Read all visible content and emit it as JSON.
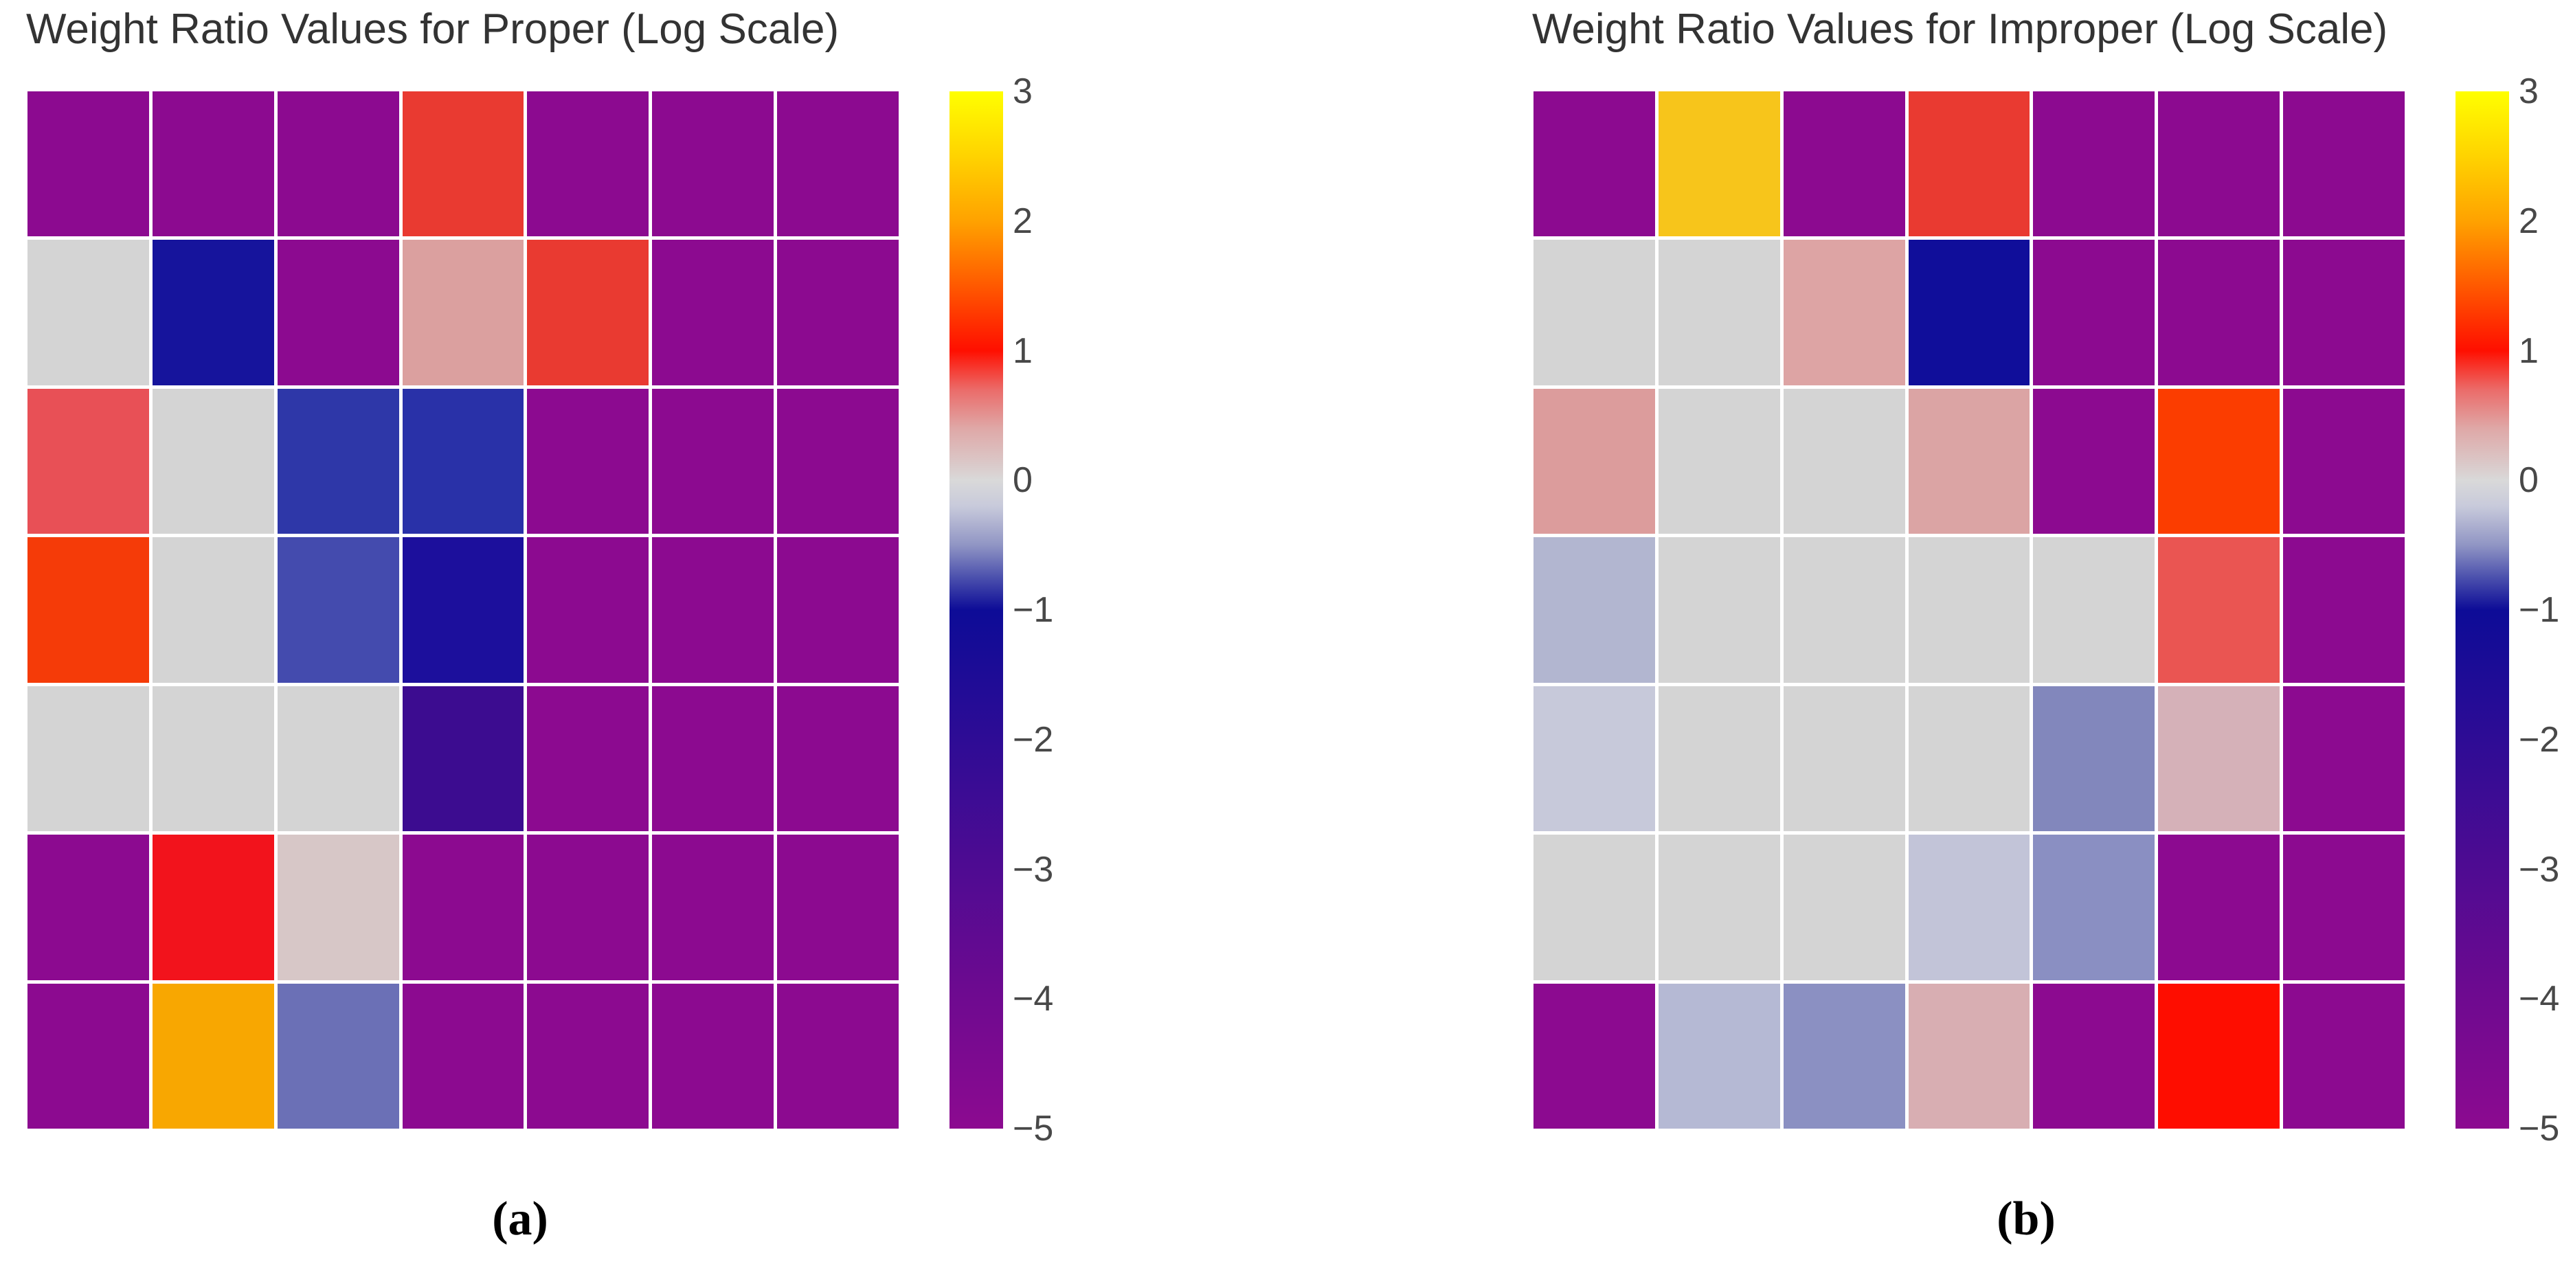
{
  "figure": {
    "background": "#ffffff",
    "colorbar": {
      "min": -5,
      "max": 3,
      "orientation": "vertical",
      "position": "right",
      "ticks": [
        {
          "value": 3,
          "label": "3"
        },
        {
          "value": 2,
          "label": "2"
        },
        {
          "value": 1,
          "label": "1"
        },
        {
          "value": 0,
          "label": "0"
        },
        {
          "value": -1,
          "label": "−1"
        },
        {
          "value": -2,
          "label": "−2"
        },
        {
          "value": -3,
          "label": "−3"
        },
        {
          "value": -4,
          "label": "−4"
        },
        {
          "value": -5,
          "label": "−5"
        }
      ],
      "gradient_stops": [
        {
          "value": 3,
          "color": "#ffff00"
        },
        {
          "value": 2.5,
          "color": "#ffd300"
        },
        {
          "value": 2,
          "color": "#ffa200"
        },
        {
          "value": 1.5,
          "color": "#ff5900"
        },
        {
          "value": 1,
          "color": "#ff0f00"
        },
        {
          "value": 0.7,
          "color": "#eb6b69"
        },
        {
          "value": 0.4,
          "color": "#dfa8a7"
        },
        {
          "value": 0.1,
          "color": "#dacccc"
        },
        {
          "value": 0,
          "color": "#d9d9d9"
        },
        {
          "value": -0.2,
          "color": "#c8cadb"
        },
        {
          "value": -0.5,
          "color": "#9095c4"
        },
        {
          "value": -0.75,
          "color": "#4b50ad"
        },
        {
          "value": -1,
          "color": "#0d0c97"
        },
        {
          "value": -2,
          "color": "#2e0c95"
        },
        {
          "value": -3,
          "color": "#4f0b92"
        },
        {
          "value": -4,
          "color": "#6f0a90"
        },
        {
          "value": -5,
          "color": "#8c0a90"
        }
      ]
    },
    "panels": [
      {
        "key": "a",
        "title": "Weight Ratio Values for Proper (Log Scale)",
        "caption": "(a)",
        "chart_data": {
          "type": "heatmap",
          "title": "Weight Ratio Values for Proper (Log Scale)",
          "rows": 7,
          "cols": 7,
          "value_range": [
            -5,
            3
          ],
          "legend_position": "right",
          "values": [
            [
              -5,
              -5,
              -5,
              0.9,
              -5,
              -5,
              -5
            ],
            [
              0,
              -1.1,
              -5,
              0.45,
              0.9,
              -5,
              -5
            ],
            [
              0.8,
              0,
              -0.85,
              -0.9,
              -5,
              -5,
              -5
            ],
            [
              1.2,
              0,
              -0.75,
              -1.2,
              -5,
              -5,
              -5
            ],
            [
              0,
              0,
              0,
              -2.7,
              -5,
              -5,
              -5
            ],
            [
              -5,
              1.0,
              0.2,
              -5,
              -5,
              -5,
              -5
            ],
            [
              -5,
              2.0,
              -0.6,
              -5,
              -5,
              -5,
              -5
            ]
          ],
          "cell_colors": [
            [
              "#8c0a90",
              "#8c0a90",
              "#8c0a90",
              "#e93a31",
              "#8c0a90",
              "#8c0a90",
              "#8c0a90"
            ],
            [
              "#d4d4d4",
              "#16149c",
              "#8c0a90",
              "#dba09f",
              "#e93a31",
              "#8c0a90",
              "#8c0a90"
            ],
            [
              "#e85056",
              "#d4d4d4",
              "#2e37a8",
              "#2931a8",
              "#8c0a90",
              "#8c0a90",
              "#8c0a90"
            ],
            [
              "#f53b08",
              "#d4d4d4",
              "#444bae",
              "#1c0f9c",
              "#8c0a90",
              "#8c0a90",
              "#8c0a90"
            ],
            [
              "#d4d4d4",
              "#d4d4d4",
              "#d4d4d4",
              "#3c0c90",
              "#8c0a90",
              "#8c0a90",
              "#8c0a90"
            ],
            [
              "#8c0a90",
              "#f2131c",
              "#d7c7c7",
              "#8c0a90",
              "#8c0a90",
              "#8c0a90",
              "#8c0a90"
            ],
            [
              "#8c0a90",
              "#f8a701",
              "#6b70b6",
              "#8c0a90",
              "#8c0a90",
              "#8c0a90",
              "#8c0a90"
            ]
          ]
        }
      },
      {
        "key": "b",
        "title": "Weight Ratio Values for Improper (Log Scale)",
        "caption": "(b)",
        "chart_data": {
          "type": "heatmap",
          "title": "Weight Ratio Values for Improper (Log Scale)",
          "rows": 7,
          "cols": 7,
          "value_range": [
            -5,
            3
          ],
          "legend_position": "right",
          "values": [
            [
              -5,
              2.4,
              -5,
              0.9,
              -5,
              -5,
              -5
            ],
            [
              0,
              0,
              0.4,
              -1.1,
              -5,
              -5,
              -5
            ],
            [
              0.5,
              0,
              0,
              0.4,
              -5,
              1.35,
              -5
            ],
            [
              -0.25,
              0,
              0,
              0,
              0,
              0.75,
              -5
            ],
            [
              -0.15,
              0,
              0,
              0,
              -0.55,
              0.3,
              -5
            ],
            [
              0,
              0,
              0,
              -0.2,
              -0.5,
              -5,
              -5
            ],
            [
              -5,
              -0.2,
              -0.5,
              0.3,
              -5,
              1.05,
              -5
            ]
          ],
          "cell_colors": [
            [
              "#8c0a90",
              "#f7c51b",
              "#8c0a90",
              "#e93a31",
              "#8c0a90",
              "#8c0a90",
              "#8c0a90"
            ],
            [
              "#d4d4d4",
              "#d4d4d4",
              "#dda4a4",
              "#100e9a",
              "#8c0a90",
              "#8c0a90",
              "#8c0a90"
            ],
            [
              "#dc9c9c",
              "#d4d4d4",
              "#d4d4d4",
              "#dba4a4",
              "#8c0a90",
              "#fb3d00",
              "#8c0a90"
            ],
            [
              "#b2b6d0",
              "#d4d4d4",
              "#d4d4d4",
              "#d4d4d4",
              "#d4d4d4",
              "#ea5552",
              "#8c0a90"
            ],
            [
              "#c7c9da",
              "#d4d4d4",
              "#d4d4d4",
              "#d4d4d4",
              "#8287bc",
              "#d5b1b8",
              "#8c0a90"
            ],
            [
              "#d4d4d4",
              "#d4d4d4",
              "#d4d4d4",
              "#c2c4d8",
              "#8a8fc2",
              "#8c0a90",
              "#8c0a90"
            ],
            [
              "#8c0a90",
              "#b5b9d4",
              "#8b90c2",
              "#d8aeb2",
              "#8c0a90",
              "#fe0d00",
              "#8c0a90"
            ]
          ]
        }
      }
    ]
  }
}
